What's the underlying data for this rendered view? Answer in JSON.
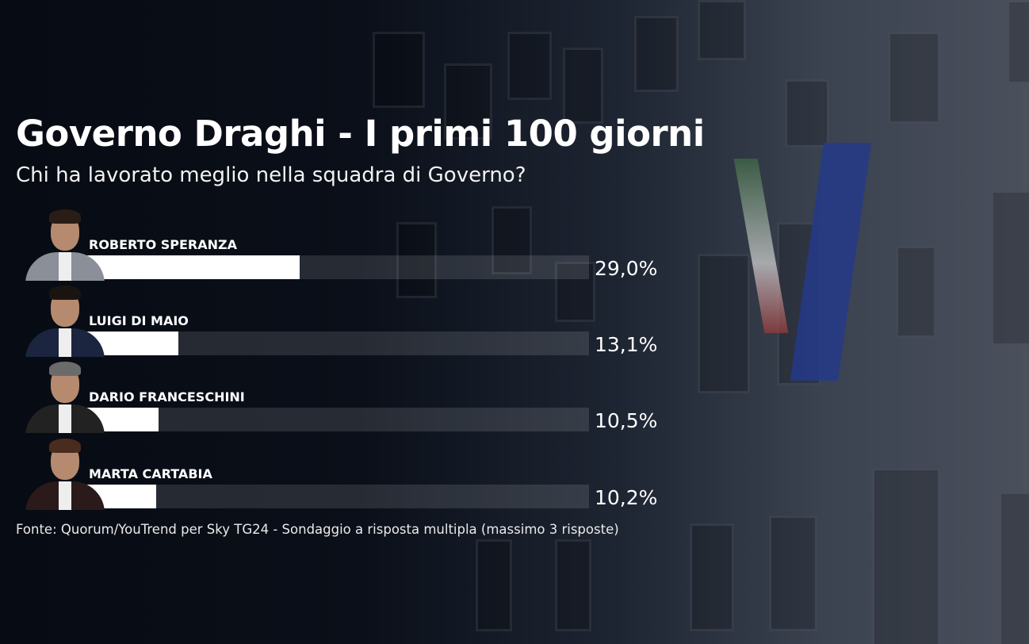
{
  "chart_data": {
    "type": "bar",
    "orientation": "horizontal",
    "title": "Governo Draghi - I primi 100 giorni",
    "subtitle": "Chi ha lavorato meglio nella squadra di Governo?",
    "categories": [
      "ROBERTO SPERANZA",
      "LUIGI DI MAIO",
      "DARIO FRANCESCHINI",
      "MARTA CARTABIA"
    ],
    "values": [
      29.0,
      13.1,
      10.5,
      10.2
    ],
    "value_labels": [
      "29,0%",
      "13,1%",
      "10,5%",
      "10,2%"
    ],
    "unit": "%",
    "xlim": [
      0,
      67
    ],
    "grid": false,
    "bar_color": "#ffffff",
    "track_color": "#3a3f48",
    "source": "Fonte: Quorum/YouTrend per Sky TG24 - Sondaggio a risposta multipla (massimo 3 risposte)"
  }
}
